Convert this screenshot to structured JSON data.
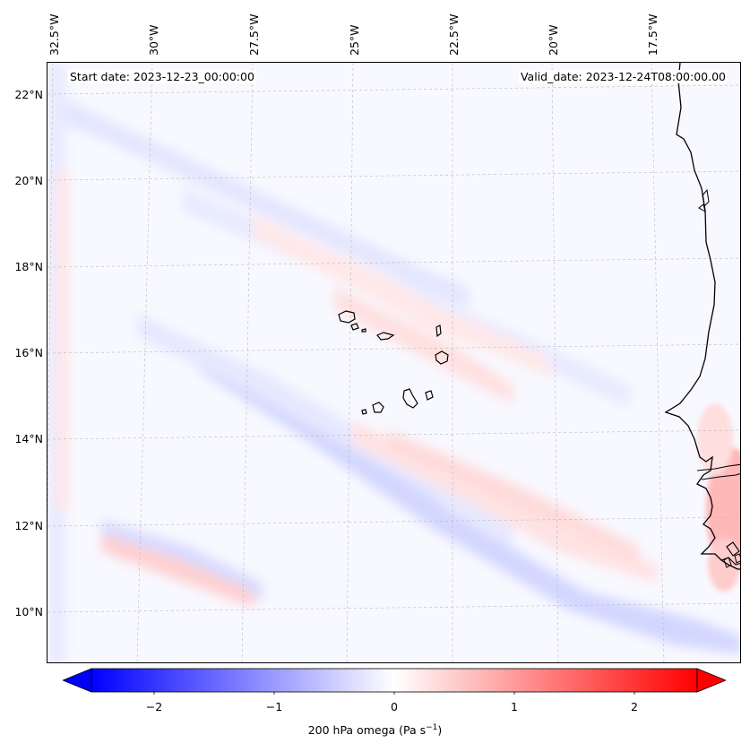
{
  "map": {
    "start_date": "Start date: 2023-12-23_00:00:00",
    "valid_date": "Valid_date: 2023-12-24T08:00:00.00",
    "longitude_labels": [
      "32.5°W",
      "30°W",
      "27.5°W",
      "25°W",
      "22.5°W",
      "20°W",
      "17.5°W"
    ],
    "latitude_labels": [
      "22°N",
      "20°N",
      "18°N",
      "16°N",
      "14°N",
      "12°N",
      "10°N"
    ],
    "field": "200 hPa omega",
    "colormap": "bwr",
    "features": [
      "coastline-west-africa",
      "cape-verde-islands"
    ]
  },
  "colorbar": {
    "label": "200 hPa omega (Pa s",
    "label_exponent": "−1",
    "label_close": ")",
    "ticks": [
      "−2",
      "−1",
      "0",
      "1",
      "2"
    ],
    "min": -2.7,
    "max": 2.7,
    "color_low": "#0000ff",
    "color_mid": "#ffffff",
    "color_high": "#ff0000"
  }
}
